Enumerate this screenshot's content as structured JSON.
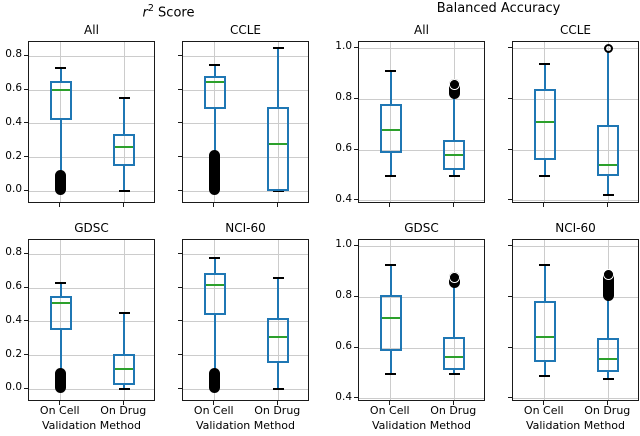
{
  "header": {
    "left_title": {
      "variable": "r",
      "exponent": "2",
      "rest": " Score"
    },
    "right_title": "Balanced Accuracy"
  },
  "colors": {
    "box": "#1f77b4",
    "median": "#2ca02c",
    "cap": "#000000",
    "flier": "#000000",
    "grid": "#cccccc",
    "spine": "#1a1a1a",
    "text": "#000000"
  },
  "chart_data": {
    "type": "boxplot",
    "x_axis_label": "Validation Method",
    "categories": [
      "On Cell",
      "On Drug"
    ],
    "grid": "on",
    "subplots": [
      {
        "id": "r2-all",
        "group": "r2-score",
        "title": "All",
        "row": 0,
        "col": 0,
        "ylim": [
          -0.075,
          0.885
        ],
        "yticks": [
          0.0,
          0.2,
          0.4,
          0.6,
          0.8
        ],
        "ytick_labels": [
          "0.0",
          "0.2",
          "0.4",
          "0.6",
          "0.8"
        ],
        "show_ytick_labels": true,
        "show_xtick_labels": false,
        "xlabel": null,
        "boxes": [
          {
            "label": "On Cell",
            "whislo": 0.105,
            "lo_cap": false,
            "q1": 0.42,
            "med": 0.6,
            "q3": 0.655,
            "whishi": 0.73,
            "hi_cap": true,
            "fliers": [
              {
                "shape": "cluster",
                "from": 0.0,
                "to": 0.105
              }
            ]
          },
          {
            "label": "On Drug",
            "whislo": 0.0,
            "lo_cap": true,
            "q1": 0.15,
            "med": 0.26,
            "q3": 0.34,
            "whishi": 0.555,
            "hi_cap": true,
            "fliers": []
          }
        ]
      },
      {
        "id": "r2-ccle",
        "group": "r2-score",
        "title": "CCLE",
        "row": 0,
        "col": 1,
        "ylim": [
          -0.075,
          0.885
        ],
        "yticks": [
          0.0,
          0.2,
          0.4,
          0.6,
          0.8
        ],
        "show_ytick_labels": false,
        "show_xtick_labels": false,
        "xlabel": null,
        "boxes": [
          {
            "label": "On Cell",
            "whislo": 0.225,
            "lo_cap": false,
            "q1": 0.49,
            "med": 0.65,
            "q3": 0.685,
            "whishi": 0.75,
            "hi_cap": true,
            "fliers": [
              {
                "shape": "cluster",
                "from": 0.0,
                "to": 0.22
              }
            ]
          },
          {
            "label": "On Drug",
            "whislo": 0.0,
            "lo_cap": true,
            "q1": 0.005,
            "med": 0.28,
            "q3": 0.5,
            "whishi": 0.85,
            "hi_cap": true,
            "fliers": []
          }
        ]
      },
      {
        "id": "ba-all",
        "group": "balanced-accuracy",
        "title": "All",
        "row": 0,
        "col": 2,
        "ylim": [
          0.388,
          1.025
        ],
        "yticks": [
          0.4,
          0.6,
          0.8,
          1.0
        ],
        "ytick_labels": [
          "0.4",
          "0.6",
          "0.8",
          "1.0"
        ],
        "show_ytick_labels": true,
        "show_xtick_labels": false,
        "xlabel": null,
        "boxes": [
          {
            "label": "On Cell",
            "whislo": 0.5,
            "lo_cap": true,
            "q1": 0.59,
            "med": 0.68,
            "q3": 0.78,
            "whishi": 0.91,
            "hi_cap": true,
            "fliers": []
          },
          {
            "label": "On Drug",
            "whislo": 0.5,
            "lo_cap": true,
            "q1": 0.52,
            "med": 0.58,
            "q3": 0.64,
            "whishi": 0.815,
            "hi_cap": false,
            "fliers": [
              {
                "shape": "cluster",
                "from": 0.818,
                "to": 0.862
              },
              {
                "shape": "circle",
                "at": 0.856,
                "ring": true
              }
            ]
          }
        ]
      },
      {
        "id": "ba-ccle",
        "group": "balanced-accuracy",
        "title": "CCLE",
        "row": 0,
        "col": 3,
        "ylim": [
          0.388,
          1.025
        ],
        "yticks": [
          0.4,
          0.6,
          0.8,
          1.0
        ],
        "show_ytick_labels": false,
        "show_xtick_labels": false,
        "xlabel": null,
        "boxes": [
          {
            "label": "On Cell",
            "whislo": 0.5,
            "lo_cap": true,
            "q1": 0.56,
            "med": 0.71,
            "q3": 0.84,
            "whishi": 0.94,
            "hi_cap": true,
            "fliers": []
          },
          {
            "label": "On Drug",
            "whislo": 0.425,
            "lo_cap": true,
            "q1": 0.5,
            "med": 0.54,
            "q3": 0.7,
            "whishi": 0.99,
            "hi_cap": false,
            "fliers": [
              {
                "shape": "circle",
                "at": 1.0,
                "ring": false
              }
            ]
          }
        ]
      },
      {
        "id": "r2-gdsc",
        "group": "r2-score",
        "title": "GDSC",
        "row": 1,
        "col": 0,
        "ylim": [
          -0.075,
          0.885
        ],
        "yticks": [
          0.0,
          0.2,
          0.4,
          0.6,
          0.8
        ],
        "ytick_labels": [
          "0.0",
          "0.2",
          "0.4",
          "0.6",
          "0.8"
        ],
        "show_ytick_labels": true,
        "show_xtick_labels": true,
        "xlabel": "Validation Method",
        "boxes": [
          {
            "label": "On Cell",
            "whislo": 0.1,
            "lo_cap": false,
            "q1": 0.35,
            "med": 0.51,
            "q3": 0.555,
            "whishi": 0.63,
            "hi_cap": true,
            "fliers": [
              {
                "shape": "cluster",
                "from": 0.0,
                "to": 0.1
              }
            ]
          },
          {
            "label": "On Drug",
            "whislo": 0.0,
            "lo_cap": true,
            "q1": 0.025,
            "med": 0.12,
            "q3": 0.21,
            "whishi": 0.455,
            "hi_cap": true,
            "fliers": []
          }
        ]
      },
      {
        "id": "r2-nci60",
        "group": "r2-score",
        "title": "NCI-60",
        "row": 1,
        "col": 1,
        "ylim": [
          -0.075,
          0.885
        ],
        "yticks": [
          0.0,
          0.2,
          0.4,
          0.6,
          0.8
        ],
        "show_ytick_labels": false,
        "show_xtick_labels": true,
        "xlabel": "Validation Method",
        "boxes": [
          {
            "label": "On Cell",
            "whislo": 0.105,
            "lo_cap": false,
            "q1": 0.44,
            "med": 0.62,
            "q3": 0.69,
            "whishi": 0.78,
            "hi_cap": true,
            "fliers": [
              {
                "shape": "cluster",
                "from": 0.0,
                "to": 0.105
              }
            ]
          },
          {
            "label": "On Drug",
            "whislo": 0.0,
            "lo_cap": true,
            "q1": 0.155,
            "med": 0.31,
            "q3": 0.42,
            "whishi": 0.66,
            "hi_cap": true,
            "fliers": []
          }
        ]
      },
      {
        "id": "ba-gdsc",
        "group": "balanced-accuracy",
        "title": "GDSC",
        "row": 1,
        "col": 2,
        "ylim": [
          0.388,
          1.025
        ],
        "yticks": [
          0.4,
          0.6,
          0.8,
          1.0
        ],
        "ytick_labels": [
          "0.4",
          "0.6",
          "0.8",
          "1.0"
        ],
        "show_ytick_labels": true,
        "show_xtick_labels": true,
        "xlabel": "Validation Method",
        "boxes": [
          {
            "label": "On Cell",
            "whislo": 0.5,
            "lo_cap": true,
            "q1": 0.59,
            "med": 0.72,
            "q3": 0.81,
            "whishi": 0.925,
            "hi_cap": true,
            "fliers": []
          },
          {
            "label": "On Drug",
            "whislo": 0.497,
            "lo_cap": true,
            "q1": 0.515,
            "med": 0.565,
            "q3": 0.645,
            "whishi": 0.848,
            "hi_cap": false,
            "fliers": [
              {
                "shape": "cluster",
                "from": 0.85,
                "to": 0.885
              },
              {
                "shape": "circle",
                "at": 0.878,
                "ring": true
              }
            ]
          }
        ]
      },
      {
        "id": "ba-nci60",
        "group": "balanced-accuracy",
        "title": "NCI-60",
        "row": 1,
        "col": 3,
        "ylim": [
          0.388,
          1.025
        ],
        "yticks": [
          0.4,
          0.6,
          0.8,
          1.0
        ],
        "show_ytick_labels": false,
        "show_xtick_labels": true,
        "xlabel": "Validation Method",
        "boxes": [
          {
            "label": "On Cell",
            "whislo": 0.49,
            "lo_cap": true,
            "q1": 0.545,
            "med": 0.645,
            "q3": 0.785,
            "whishi": 0.925,
            "hi_cap": true,
            "fliers": []
          },
          {
            "label": "On Drug",
            "whislo": 0.48,
            "lo_cap": true,
            "q1": 0.505,
            "med": 0.557,
            "q3": 0.64,
            "whishi": 0.798,
            "hi_cap": false,
            "fliers": [
              {
                "shape": "cluster",
                "from": 0.8,
                "to": 0.892
              },
              {
                "shape": "circle",
                "at": 0.888,
                "ring": true
              }
            ]
          }
        ]
      }
    ]
  }
}
